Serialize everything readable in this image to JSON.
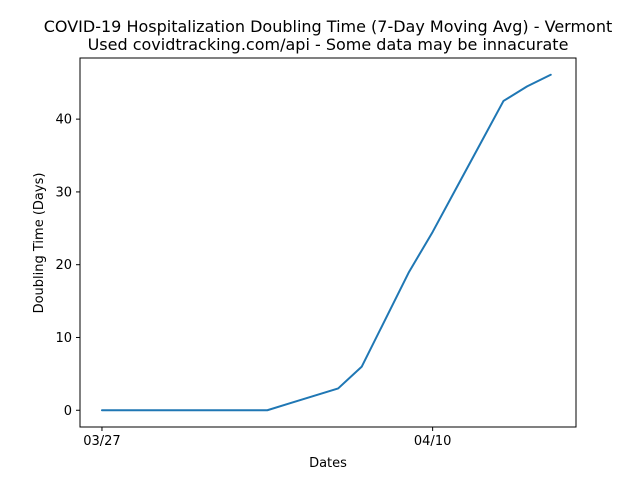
{
  "chart_data": {
    "type": "line",
    "title": "COVID-19 Hospitalization Doubling Time (7-Day Moving Avg) - Vermont",
    "subtitle": "Used covidtracking.com/api - Some data may be innacurate",
    "xlabel": "Dates",
    "ylabel": "Doubling Time (Days)",
    "x_tick_labels": [
      {
        "day": 0,
        "label": "03/27"
      },
      {
        "day": 14,
        "label": "04/10"
      }
    ],
    "y_ticks": [
      0,
      10,
      20,
      30,
      40
    ],
    "xlim": [
      -0.93,
      20.07
    ],
    "ylim": [
      -2.3,
      48.4
    ],
    "grid": false,
    "series": [
      {
        "color": "#1f77b4",
        "x": [
          0,
          1,
          2,
          3,
          4,
          5,
          6,
          7,
          8,
          9,
          10,
          11,
          12,
          13,
          14,
          15,
          16,
          17,
          18,
          19
        ],
        "y": [
          0,
          0,
          0,
          0,
          0,
          0,
          0,
          0,
          1,
          2,
          3,
          6,
          12.5,
          19,
          24.5,
          30.5,
          36.5,
          42.5,
          44.5,
          46.1
        ]
      }
    ]
  }
}
